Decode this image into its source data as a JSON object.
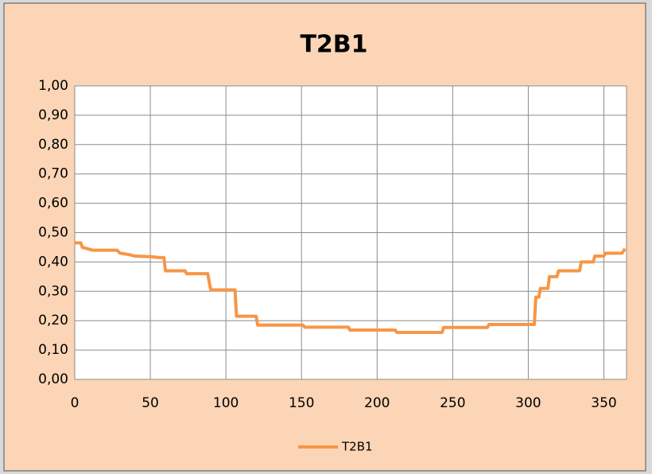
{
  "chart_data": {
    "type": "line",
    "title": "T2B1",
    "x": [
      0,
      4,
      5,
      12,
      28,
      30,
      36,
      40,
      50,
      56,
      59,
      60,
      73,
      74,
      88,
      89,
      90,
      106,
      107,
      120,
      121,
      151,
      152,
      181,
      182,
      212,
      213,
      243,
      244,
      273,
      274,
      304,
      305,
      307,
      308,
      313,
      314,
      319,
      320,
      334,
      335,
      343,
      344,
      350,
      351,
      362,
      364
    ],
    "series": [
      {
        "name": "T2B1",
        "color": "#f79646",
        "values": [
          0.465,
          0.465,
          0.45,
          0.44,
          0.44,
          0.43,
          0.425,
          0.42,
          0.418,
          0.415,
          0.415,
          0.37,
          0.37,
          0.36,
          0.36,
          0.33,
          0.305,
          0.305,
          0.215,
          0.215,
          0.185,
          0.185,
          0.178,
          0.178,
          0.168,
          0.168,
          0.16,
          0.16,
          0.177,
          0.177,
          0.187,
          0.187,
          0.28,
          0.28,
          0.31,
          0.31,
          0.35,
          0.35,
          0.37,
          0.37,
          0.4,
          0.4,
          0.42,
          0.42,
          0.43,
          0.43,
          0.445
        ]
      }
    ],
    "xlim": [
      0,
      365
    ],
    "xticks": [
      0,
      50,
      100,
      150,
      200,
      250,
      300,
      350
    ],
    "ylim": [
      0,
      1
    ],
    "yticks": [
      {
        "value": 0,
        "label": "0,00"
      },
      {
        "value": 0.1,
        "label": "0,10"
      },
      {
        "value": 0.2,
        "label": "0,20"
      },
      {
        "value": 0.3,
        "label": "0,30"
      },
      {
        "value": 0.4,
        "label": "0,40"
      },
      {
        "value": 0.5,
        "label": "0,50"
      },
      {
        "value": 0.6,
        "label": "0,60"
      },
      {
        "value": 0.7,
        "label": "0,70"
      },
      {
        "value": 0.8,
        "label": "0,80"
      },
      {
        "value": 0.9,
        "label": "0,90"
      },
      {
        "value": 1,
        "label": "1,00"
      }
    ],
    "grid": true,
    "legend": "bottom"
  }
}
